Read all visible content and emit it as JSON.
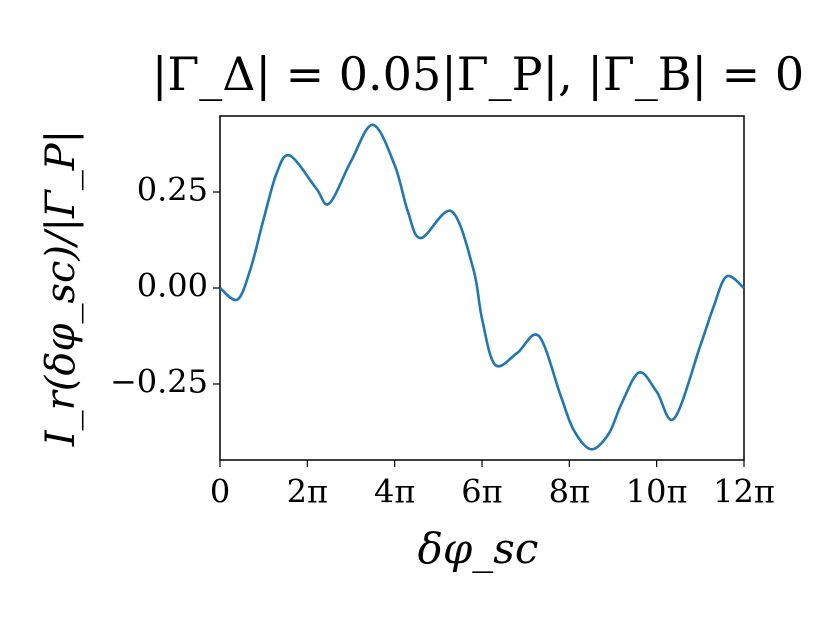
{
  "chart_data": {
    "type": "line",
    "title": "|Γ_Δ| = 0.05|Γ_P|, |Γ_B| = 0",
    "x_label": "δφ_sc",
    "y_label": "I_r(δφ_sc)/|Γ_P|",
    "series": [
      {
        "name": "I_r",
        "color": "#1f77b4",
        "x": [
          0,
          1.257,
          2.199,
          3.142,
          4.084,
          5.027,
          6.912,
          7.854,
          9.425,
          10.996,
          12.566,
          13.509,
          14.451,
          16.65,
          18.221,
          18.85,
          19.792,
          21.363,
          22.934,
          24.504,
          25.447,
          26.704,
          27.96,
          28.903,
          30.159,
          31.416,
          32.673,
          34.558,
          35.5,
          36.442,
          37.699
        ],
        "values": [
          0,
          -0.03,
          0.05,
          0.18,
          0.3,
          0.345,
          0.26,
          0.22,
          0.33,
          0.425,
          0.32,
          0.2,
          0.13,
          0.2,
          0.05,
          -0.08,
          -0.2,
          -0.17,
          -0.125,
          -0.28,
          -0.37,
          -0.42,
          -0.38,
          -0.3,
          -0.22,
          -0.27,
          -0.34,
          -0.15,
          -0.05,
          0.03,
          0
        ]
      }
    ],
    "xlim": [
      0,
      37.699
    ],
    "xticks": [
      {
        "value": 0,
        "label": "0"
      },
      {
        "value": 6.283,
        "label": "2π"
      },
      {
        "value": 12.566,
        "label": "4π"
      },
      {
        "value": 18.85,
        "label": "6π"
      },
      {
        "value": 25.133,
        "label": "8π"
      },
      {
        "value": 31.416,
        "label": "10π"
      },
      {
        "value": 37.699,
        "label": "12π"
      }
    ],
    "ylim": [
      -0.448,
      0.448
    ],
    "yticks": [
      {
        "value": -0.25,
        "label": "−0.25"
      },
      {
        "value": 0,
        "label": "0.00"
      },
      {
        "value": 0.25,
        "label": "0.25"
      }
    ]
  }
}
